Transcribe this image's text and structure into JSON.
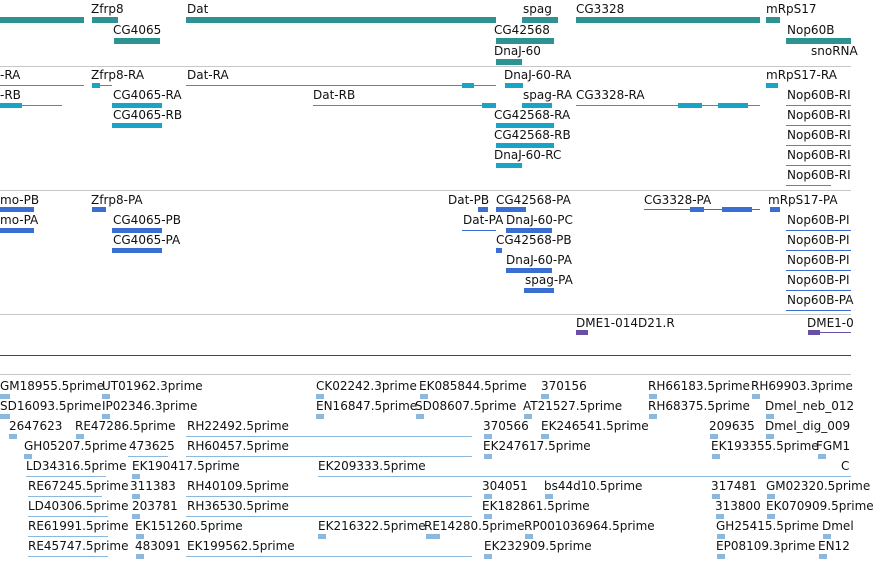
{
  "tracks": {
    "genes": [
      {
        "label": "Zfrp8"
      },
      {
        "label": "Dat"
      },
      {
        "label": "spag"
      },
      {
        "label": "CG3328"
      },
      {
        "label": "mRpS17"
      },
      {
        "label": "CG4065"
      },
      {
        "label": "CG42568"
      },
      {
        "label": "Nop60B"
      },
      {
        "label": "DnaJ-60"
      },
      {
        "label": "snoRNA"
      }
    ],
    "transcripts_a": [
      {
        "label": "-RA"
      },
      {
        "label": "Zfrp8-RA"
      },
      {
        "label": "Dat-RA"
      },
      {
        "label": "DnaJ-60-RA"
      },
      {
        "label": "mRpS17-RA"
      },
      {
        "label": "-RB"
      },
      {
        "label": "CG4065-RA"
      },
      {
        "label": "Dat-RB"
      },
      {
        "label": "spag-RA"
      },
      {
        "label": "CG3328-RA"
      },
      {
        "label": "Nop60B-RI"
      },
      {
        "label": "CG4065-RB"
      },
      {
        "label": "CG42568-RA"
      },
      {
        "label": "Nop60B-RI"
      },
      {
        "label": "CG42568-RB"
      },
      {
        "label": "Nop60B-RI"
      },
      {
        "label": "DnaJ-60-RC"
      },
      {
        "label": "Nop60B-RI"
      },
      {
        "label": "Nop60B-RI"
      }
    ],
    "transcripts_b": [
      {
        "label": "mo-PB"
      },
      {
        "label": "Zfrp8-PA"
      },
      {
        "label": "Dat-PB"
      },
      {
        "label": "CG42568-PA"
      },
      {
        "label": "CG3328-PA"
      },
      {
        "label": "mRpS17-PA"
      },
      {
        "label": "mo-PA"
      },
      {
        "label": "CG4065-PB"
      },
      {
        "label": "Dat-PA"
      },
      {
        "label": "DnaJ-60-PC"
      },
      {
        "label": "Nop60B-PI"
      },
      {
        "label": "CG4065-PA"
      },
      {
        "label": "CG42568-PB"
      },
      {
        "label": "Nop60B-PI"
      },
      {
        "label": "DnaJ-60-PA"
      },
      {
        "label": "Nop60B-PI"
      },
      {
        "label": "spag-PA"
      },
      {
        "label": "Nop60B-PI"
      },
      {
        "label": "Nop60B-PA"
      }
    ],
    "clones": [
      {
        "label": "DME1-014D21.R"
      },
      {
        "label": "DME1-0"
      }
    ],
    "ests": [
      {
        "label": "GM18955.5prime"
      },
      {
        "label": "UT01962.3prime"
      },
      {
        "label": "CK02242.3prime"
      },
      {
        "label": "EK085844.5prime"
      },
      {
        "label": "370156"
      },
      {
        "label": "RH66183.5prime"
      },
      {
        "label": "RH69903.3prime"
      },
      {
        "label": "SD16093.5prime"
      },
      {
        "label": "IP02346.3prime"
      },
      {
        "label": "EN16847.5prime"
      },
      {
        "label": "SD08607.5prime"
      },
      {
        "label": "AT21527.5prime"
      },
      {
        "label": "RH68375.5prime"
      },
      {
        "label": "Dmel_neb_012"
      },
      {
        "label": "2647623"
      },
      {
        "label": "RE47286.5prime"
      },
      {
        "label": "RH22492.5prime"
      },
      {
        "label": "370566"
      },
      {
        "label": "EK246541.5prime"
      },
      {
        "label": "209635"
      },
      {
        "label": "Dmel_dig_009"
      },
      {
        "label": "GH05207.5prime"
      },
      {
        "label": "473625"
      },
      {
        "label": "RH60457.5prime"
      },
      {
        "label": "EK247617.5prime"
      },
      {
        "label": "EK193355.5prime"
      },
      {
        "label": "FGM1"
      },
      {
        "label": "LD34316.5prime"
      },
      {
        "label": "EK190417.5prime"
      },
      {
        "label": "EK209333.5prime"
      },
      {
        "label": "C"
      },
      {
        "label": "RE67245.5prime"
      },
      {
        "label": "311383"
      },
      {
        "label": "RH40109.5prime"
      },
      {
        "label": "304051"
      },
      {
        "label": "bs44d10.5prime"
      },
      {
        "label": "317481"
      },
      {
        "label": "GM02320.5prime"
      },
      {
        "label": "LD40306.5prime"
      },
      {
        "label": "203781"
      },
      {
        "label": "RH36530.5prime"
      },
      {
        "label": "EK182861.5prime"
      },
      {
        "label": "313800"
      },
      {
        "label": "EK070909.5prime"
      },
      {
        "label": "RE61991.5prime"
      },
      {
        "label": "EK151260.5prime"
      },
      {
        "label": "EK216322.5prime"
      },
      {
        "label": "RE14280.5prime"
      },
      {
        "label": "RP001036964.5prime"
      },
      {
        "label": "GH25415.5prime"
      },
      {
        "label": "Dmel"
      },
      {
        "label": "RE45747.5prime"
      },
      {
        "label": "483091"
      },
      {
        "label": "EK199562.5prime"
      },
      {
        "label": "EK232909.5prime"
      },
      {
        "label": "EP08109.3prime"
      },
      {
        "label": "EN12"
      }
    ]
  },
  "colors": {
    "gene": "#2c9292",
    "transcript_rna": "#19a3c6",
    "transcript_protein": "#3a6fd1",
    "clone": "#6a4fa6",
    "est": "#8bb8dc",
    "separator_purple": "#6a2c7a"
  }
}
